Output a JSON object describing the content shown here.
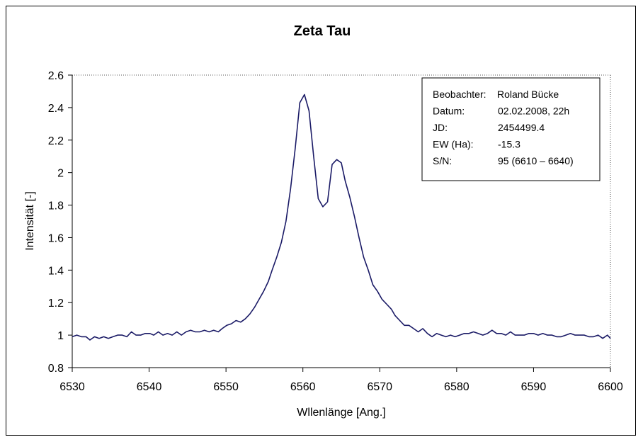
{
  "chart_data": {
    "type": "line",
    "title": "Zeta Tau",
    "xlabel": "Wllenlänge [Ang.]",
    "ylabel": "Intensität [-]",
    "xlim": [
      6530,
      6600
    ],
    "ylim": [
      0.8,
      2.6
    ],
    "xticks": [
      6530,
      6540,
      6550,
      6560,
      6570,
      6580,
      6590,
      6600
    ],
    "yticks": [
      0.8,
      1,
      1.2,
      1.4,
      1.6,
      1.8,
      2,
      2.2,
      2.4,
      2.6
    ],
    "ytick_labels": [
      "0.8",
      "1",
      "1.2",
      "1.4",
      "1.6",
      "1.8",
      "2",
      "2.2",
      "2.4",
      "2.6"
    ],
    "line_color": "#1a1a66",
    "grid": false,
    "series": [
      {
        "name": "Zeta Tau",
        "x": [
          6530,
          6530.6,
          6531.2,
          6531.8,
          6532.3,
          6532.9,
          6533.5,
          6534.1,
          6534.7,
          6535.3,
          6535.9,
          6536.5,
          6537.1,
          6537.7,
          6538.3,
          6538.9,
          6539.5,
          6540.1,
          6540.6,
          6541.2,
          6541.8,
          6542.4,
          6543.0,
          6543.6,
          6544.2,
          6544.8,
          6545.4,
          6546.0,
          6546.6,
          6547.2,
          6547.8,
          6548.4,
          6549.0,
          6549.5,
          6550.1,
          6550.7,
          6551.3,
          6551.9,
          6552.5,
          6553.1,
          6553.7,
          6554.3,
          6554.9,
          6555.5,
          6556.0,
          6556.6,
          6557.2,
          6557.8,
          6558.4,
          6559.0,
          6559.6,
          6560.2,
          6560.8,
          6561.4,
          6562.0,
          6562.6,
          6563.2,
          6563.8,
          6564.4,
          6565.0,
          6565.5,
          6566.1,
          6566.7,
          6567.3,
          6567.9,
          6568.5,
          6569.1,
          6569.7,
          6570.3,
          6570.9,
          6571.5,
          6572.0,
          6572.6,
          6573.2,
          6573.8,
          6574.4,
          6575.0,
          6575.6,
          6576.2,
          6576.8,
          6577.4,
          6578.0,
          6578.6,
          6579.2,
          6579.8,
          6580.4,
          6581.0,
          6581.6,
          6582.2,
          6582.8,
          6583.4,
          6584.0,
          6584.6,
          6585.2,
          6585.8,
          6586.4,
          6587.0,
          6587.6,
          6588.2,
          6588.8,
          6589.4,
          6590.0,
          6590.6,
          6591.2,
          6591.8,
          6592.4,
          6593.0,
          6593.6,
          6594.2,
          6594.8,
          6595.4,
          6596.0,
          6596.6,
          6597.2,
          6597.8,
          6598.4,
          6599.0,
          6599.6,
          6600
        ],
        "values": [
          0.99,
          1.0,
          0.99,
          0.99,
          0.97,
          0.99,
          0.98,
          0.99,
          0.98,
          0.99,
          1.0,
          1.0,
          0.99,
          1.02,
          1.0,
          1.0,
          1.01,
          1.01,
          1.0,
          1.02,
          1.0,
          1.01,
          1.0,
          1.02,
          1.0,
          1.02,
          1.03,
          1.02,
          1.02,
          1.03,
          1.02,
          1.03,
          1.02,
          1.04,
          1.06,
          1.07,
          1.09,
          1.08,
          1.1,
          1.13,
          1.17,
          1.22,
          1.27,
          1.33,
          1.4,
          1.48,
          1.57,
          1.7,
          1.9,
          2.15,
          2.43,
          2.48,
          2.38,
          2.1,
          1.84,
          1.79,
          1.82,
          2.05,
          2.08,
          2.06,
          1.95,
          1.85,
          1.73,
          1.6,
          1.48,
          1.4,
          1.31,
          1.27,
          1.22,
          1.19,
          1.16,
          1.12,
          1.09,
          1.06,
          1.06,
          1.04,
          1.02,
          1.04,
          1.01,
          0.99,
          1.01,
          1.0,
          0.99,
          1.0,
          0.99,
          1.0,
          1.01,
          1.01,
          1.02,
          1.01,
          1.0,
          1.01,
          1.03,
          1.01,
          1.01,
          1.0,
          1.02,
          1.0,
          1.0,
          1.0,
          1.01,
          1.01,
          1.0,
          1.01,
          1.0,
          1.0,
          0.99,
          0.99,
          1.0,
          1.01,
          1.0,
          1.0,
          1.0,
          0.99,
          0.99,
          1.0,
          0.98,
          1.0,
          0.98
        ],
        "smooth_note": ""
      }
    ],
    "legend": {
      "placement": "top-right",
      "rows": [
        {
          "label": "Beobachter:",
          "value": "Roland Bücke"
        },
        {
          "label": "Datum:",
          "value": "02.02.2008, 22h"
        },
        {
          "label": "JD:",
          "value": " 2454499.4"
        },
        {
          "label": "EW (Ha):",
          "value": "-15.3"
        },
        {
          "label": "S/N:",
          "value": "95 (6610 – 6640)"
        }
      ]
    }
  }
}
